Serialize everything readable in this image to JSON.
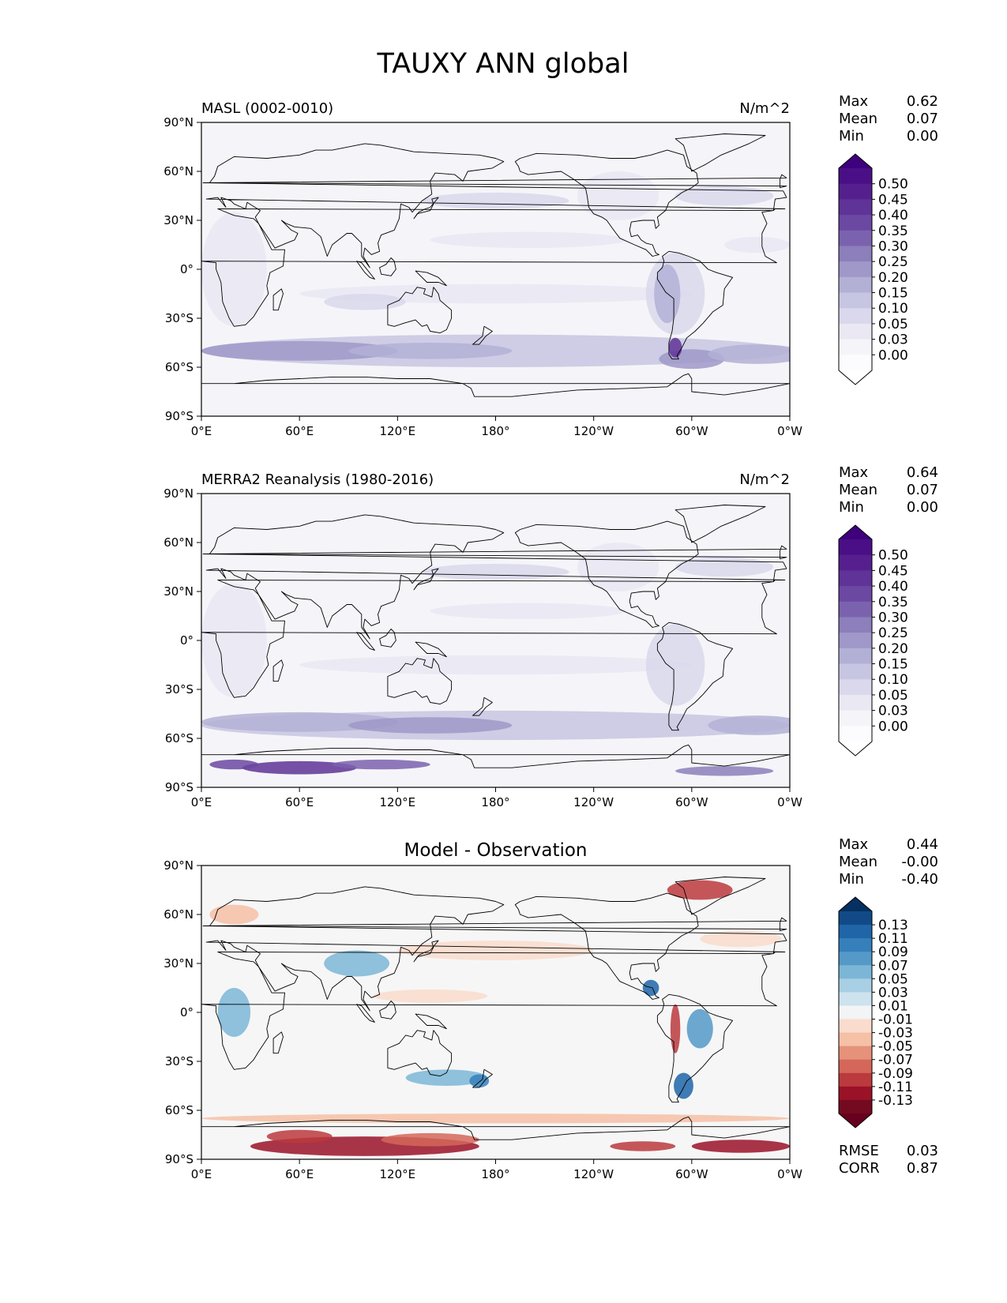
{
  "title": "TAUXY ANN global",
  "chart_data": [
    {
      "type": "heatmap",
      "title": "MASL (0002-0010)",
      "units": "N/m^2",
      "x_ticks": [
        "0°E",
        "60°E",
        "120°E",
        "180°",
        "120°W",
        "60°W",
        "0°W"
      ],
      "y_ticks": [
        "90°N",
        "60°N",
        "30°N",
        "0°",
        "30°S",
        "60°S",
        "90°S"
      ],
      "xlim": [
        0,
        360
      ],
      "ylim": [
        -90,
        90
      ],
      "stats": [
        {
          "label": "Max",
          "value": "0.62"
        },
        {
          "label": "Mean",
          "value": "0.07"
        },
        {
          "label": "Min",
          "value": "0.00"
        }
      ],
      "colorbar": {
        "labels": [
          "0.50",
          "0.45",
          "0.40",
          "0.35",
          "0.30",
          "0.25",
          "0.20",
          "0.15",
          "0.10",
          "0.05",
          "0.03",
          "0.00"
        ],
        "colors": [
          "#4a0f86",
          "#55208e",
          "#5f3397",
          "#6b48a2",
          "#7b62ae",
          "#8c7fbb",
          "#9f98c9",
          "#b3b0d6",
          "#c7c6e2",
          "#d9d8ec",
          "#e9e8f3",
          "#f5f5f9",
          "#fcfbfd"
        ],
        "top_color": "#3f007d",
        "bottom_color": "#ffffff"
      }
    },
    {
      "type": "heatmap",
      "title": "MERRA2 Reanalysis (1980-2016)",
      "units": "N/m^2",
      "x_ticks": [
        "0°E",
        "60°E",
        "120°E",
        "180°",
        "120°W",
        "60°W",
        "0°W"
      ],
      "y_ticks": [
        "90°N",
        "60°N",
        "30°N",
        "0°",
        "30°S",
        "60°S",
        "90°S"
      ],
      "xlim": [
        0,
        360
      ],
      "ylim": [
        -90,
        90
      ],
      "stats": [
        {
          "label": "Max",
          "value": "0.64"
        },
        {
          "label": "Mean",
          "value": "0.07"
        },
        {
          "label": "Min",
          "value": "0.00"
        }
      ],
      "colorbar": {
        "labels": [
          "0.50",
          "0.45",
          "0.40",
          "0.35",
          "0.30",
          "0.25",
          "0.20",
          "0.15",
          "0.10",
          "0.05",
          "0.03",
          "0.00"
        ],
        "colors": [
          "#4a0f86",
          "#55208e",
          "#5f3397",
          "#6b48a2",
          "#7b62ae",
          "#8c7fbb",
          "#9f98c9",
          "#b3b0d6",
          "#c7c6e2",
          "#d9d8ec",
          "#e9e8f3",
          "#f5f5f9",
          "#fcfbfd"
        ],
        "top_color": "#3f007d",
        "bottom_color": "#ffffff"
      }
    },
    {
      "type": "heatmap",
      "title": "Model - Observation",
      "units": "",
      "x_ticks": [
        "0°E",
        "60°E",
        "120°E",
        "180°",
        "120°W",
        "60°W",
        "0°W"
      ],
      "y_ticks": [
        "90°N",
        "60°N",
        "30°N",
        "0°",
        "30°S",
        "60°S",
        "90°S"
      ],
      "xlim": [
        0,
        360
      ],
      "ylim": [
        -90,
        90
      ],
      "stats": [
        {
          "label": "Max",
          "value": "0.44"
        },
        {
          "label": "Mean",
          "value": "-0.00"
        },
        {
          "label": "Min",
          "value": "-0.40"
        }
      ],
      "metrics": [
        {
          "label": "RMSE",
          "value": "0.03"
        },
        {
          "label": "CORR",
          "value": "0.87"
        }
      ],
      "colorbar": {
        "labels": [
          "0.13",
          "0.11",
          "0.09",
          "0.07",
          "0.05",
          "0.03",
          "0.01",
          "-0.01",
          "-0.03",
          "-0.05",
          "-0.07",
          "-0.09",
          "-0.11",
          "-0.13"
        ],
        "colors": [
          "#114a86",
          "#1f65a8",
          "#3580bb",
          "#5499c8",
          "#7cb6d7",
          "#a8cfe4",
          "#cde3ee",
          "#f2f4f6",
          "#f9dccd",
          "#f6c0a6",
          "#e6927a",
          "#d4675a",
          "#bb3a3d",
          "#9a1228",
          "#730a20"
        ],
        "top_color": "#053061",
        "bottom_color": "#67001f"
      }
    }
  ]
}
